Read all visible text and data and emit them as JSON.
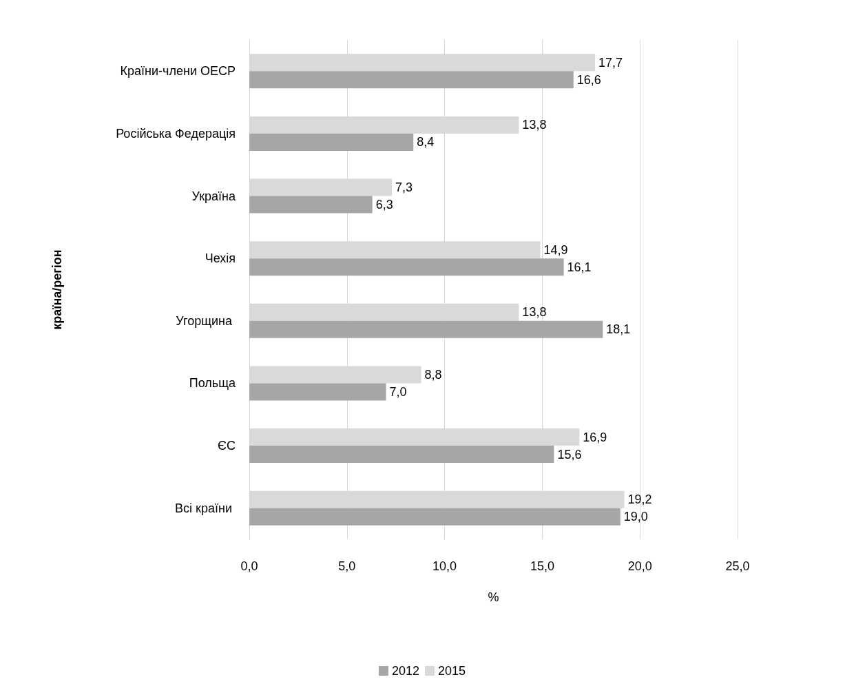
{
  "chart_data": {
    "type": "bar",
    "orientation": "horizontal",
    "xlabel": "%",
    "ylabel": "країна/регіон",
    "categories": [
      "Країни-члени ОЕСР",
      "Російська Федерація",
      "Україна",
      "Чехія",
      "Угорщина ",
      "Польща",
      "ЄС",
      "Всі країни "
    ],
    "series": [
      {
        "name": "2012",
        "color": "#a6a6a6",
        "values": [
          16.6,
          8.4,
          6.3,
          16.1,
          18.1,
          7.0,
          15.6,
          19.0
        ],
        "value_labels": [
          "16,6",
          "8,4",
          "6,3",
          "16,1",
          "18,1",
          "7,0",
          "15,6",
          "19,0"
        ]
      },
      {
        "name": "2015",
        "color": "#d9d9d9",
        "values": [
          17.7,
          13.8,
          7.3,
          14.9,
          13.8,
          8.8,
          16.9,
          19.2
        ],
        "value_labels": [
          "17,7",
          "13,8",
          "7,3",
          "14,9",
          "13,8",
          "8,8",
          "16,9",
          "19,2"
        ]
      }
    ],
    "xlim": [
      0,
      25
    ],
    "xticks": [
      {
        "value": 0,
        "label": "0,0"
      },
      {
        "value": 5,
        "label": "5,0"
      },
      {
        "value": 10,
        "label": "10,0"
      },
      {
        "value": 15,
        "label": "15,0"
      },
      {
        "value": 20,
        "label": "20,0"
      },
      {
        "value": 25,
        "label": "25,0"
      }
    ],
    "grid": "x",
    "legend": "bottom"
  }
}
